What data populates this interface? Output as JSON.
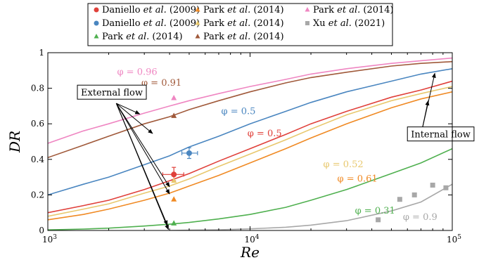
{
  "chart_data": {
    "type": "line",
    "xlabel": "Re",
    "ylabel": "DR",
    "xscale": "log",
    "xlim": [
      1000,
      100000
    ],
    "ylim": [
      0,
      1
    ],
    "x_ticks": [
      {
        "value": 1000,
        "label": "10",
        "exp": "3"
      },
      {
        "value": 10000,
        "label": "10",
        "exp": "4"
      },
      {
        "value": 100000,
        "label": "10",
        "exp": "5"
      }
    ],
    "y_ticks": [
      {
        "value": 0,
        "label": "0"
      },
      {
        "value": 0.2,
        "label": "0.2"
      },
      {
        "value": 0.4,
        "label": "0.4"
      },
      {
        "value": 0.6,
        "label": "0.6"
      },
      {
        "value": 0.8,
        "label": "0.8"
      },
      {
        "value": 1,
        "label": "1"
      }
    ],
    "grid": false,
    "legend_position": "top",
    "legend": [
      {
        "marker": "circle",
        "color": "#e0403a",
        "pre": "Daniello ",
        "italic": "et al.",
        "post": " (2009)"
      },
      {
        "marker": "triangle",
        "color": "#f08a24",
        "pre": "Park ",
        "italic": "et al.",
        "post": " (2014)"
      },
      {
        "marker": "triangle",
        "color": "#ef86c2",
        "pre": "Park ",
        "italic": "et al.",
        "post": " (2014)"
      },
      {
        "marker": "circle",
        "color": "#4a86c0",
        "pre": "Daniello ",
        "italic": "et al.",
        "post": " (2009)"
      },
      {
        "marker": "triangle",
        "color": "#e8c86e",
        "pre": "Park ",
        "italic": "et al.",
        "post": " (2014)"
      },
      {
        "marker": "square",
        "color": "#a8a8a8",
        "pre": "Xu ",
        "italic": "et al.",
        "post": " (2021)"
      },
      {
        "marker": "triangle",
        "color": "#4fb04f",
        "pre": "Park ",
        "italic": "et al.",
        "post": " (2014)"
      },
      {
        "marker": "triangle",
        "color": "#a0593a",
        "pre": "Park ",
        "italic": "et al.",
        "post": " (2014)"
      }
    ],
    "series": [
      {
        "color": "#ef86c2",
        "label": "φ = 0.96",
        "x": [
          1000,
          1500,
          2000,
          3000,
          4000,
          5000,
          7000,
          10000,
          15000,
          20000,
          30000,
          50000,
          70000,
          100000
        ],
        "y": [
          0.49,
          0.56,
          0.6,
          0.66,
          0.7,
          0.73,
          0.77,
          0.81,
          0.85,
          0.88,
          0.91,
          0.94,
          0.955,
          0.97
        ]
      },
      {
        "color": "#a0593a",
        "label": "φ = 0.91",
        "x": [
          1000,
          1500,
          2000,
          3000,
          4000,
          5000,
          7000,
          10000,
          15000,
          20000,
          30000,
          50000,
          70000,
          100000
        ],
        "y": [
          0.41,
          0.48,
          0.53,
          0.6,
          0.64,
          0.68,
          0.73,
          0.78,
          0.83,
          0.86,
          0.89,
          0.925,
          0.94,
          0.95
        ]
      },
      {
        "color": "#4a86c0",
        "label": "φ = 0.5",
        "x": [
          1000,
          1500,
          2000,
          3000,
          4000,
          5000,
          7000,
          10000,
          15000,
          20000,
          30000,
          50000,
          70000,
          100000
        ],
        "y": [
          0.2,
          0.26,
          0.3,
          0.37,
          0.42,
          0.47,
          0.53,
          0.6,
          0.67,
          0.72,
          0.78,
          0.84,
          0.88,
          0.91
        ]
      },
      {
        "color": "#e0403a",
        "label": "φ = 0.5",
        "x": [
          1000,
          1500,
          2000,
          3000,
          4000,
          5000,
          7000,
          10000,
          15000,
          20000,
          30000,
          50000,
          70000,
          100000
        ],
        "y": [
          0.1,
          0.14,
          0.17,
          0.23,
          0.28,
          0.32,
          0.39,
          0.46,
          0.54,
          0.6,
          0.67,
          0.75,
          0.79,
          0.84
        ]
      },
      {
        "color": "#e8c86e",
        "label": "φ = 0.52",
        "x": [
          1000,
          1500,
          2000,
          3000,
          4000,
          5000,
          7000,
          10000,
          15000,
          20000,
          30000,
          50000,
          70000,
          100000
        ],
        "y": [
          0.08,
          0.12,
          0.15,
          0.21,
          0.25,
          0.29,
          0.36,
          0.43,
          0.51,
          0.57,
          0.65,
          0.73,
          0.77,
          0.81
        ]
      },
      {
        "color": "#f08a24",
        "label": "φ = 0.61",
        "x": [
          1000,
          1500,
          2000,
          3000,
          4000,
          5000,
          7000,
          10000,
          15000,
          20000,
          30000,
          50000,
          70000,
          100000
        ],
        "y": [
          0.06,
          0.09,
          0.12,
          0.17,
          0.21,
          0.25,
          0.31,
          0.38,
          0.46,
          0.52,
          0.6,
          0.69,
          0.74,
          0.78
        ]
      },
      {
        "color": "#4fb04f",
        "label": "φ = 0.31",
        "x": [
          1000,
          1500,
          2000,
          3000,
          4000,
          5000,
          7000,
          10000,
          15000,
          20000,
          30000,
          50000,
          70000,
          100000
        ],
        "y": [
          0.003,
          0.008,
          0.013,
          0.025,
          0.035,
          0.045,
          0.065,
          0.09,
          0.13,
          0.17,
          0.23,
          0.32,
          0.38,
          0.46
        ]
      },
      {
        "color": "#a8a8a8",
        "label": "φ = 0.9",
        "x": [
          4000,
          5000,
          7000,
          10000,
          15000,
          20000,
          30000,
          50000,
          70000,
          100000
        ],
        "y": [
          0,
          0.002,
          0.004,
          0.009,
          0.018,
          0.03,
          0.055,
          0.11,
          0.16,
          0.26
        ]
      }
    ],
    "points": [
      {
        "shape": "circle",
        "color": "#e0403a",
        "x": 4200,
        "y": 0.315,
        "xerr": [
          3700,
          4700
        ],
        "yerr": [
          0.28,
          0.355
        ]
      },
      {
        "shape": "circle",
        "color": "#4a86c0",
        "x": 5000,
        "y": 0.435,
        "xerr": [
          4600,
          5500
        ],
        "yerr": [
          0.405,
          0.465
        ]
      },
      {
        "shape": "triangle",
        "color": "#ef86c2",
        "x": 4200,
        "y": 0.745
      },
      {
        "shape": "triangle",
        "color": "#a0593a",
        "x": 4200,
        "y": 0.645
      },
      {
        "shape": "triangle",
        "color": "#e8c86e",
        "x": 4200,
        "y": 0.28
      },
      {
        "shape": "triangle",
        "color": "#f08a24",
        "x": 4200,
        "y": 0.175
      },
      {
        "shape": "triangle",
        "color": "#4fb04f",
        "x": 4200,
        "y": 0.04
      },
      {
        "shape": "square",
        "color": "#a8a8a8",
        "x": 43000,
        "y": 0.06
      },
      {
        "shape": "square",
        "color": "#a8a8a8",
        "x": 55000,
        "y": 0.175
      },
      {
        "shape": "square",
        "color": "#a8a8a8",
        "x": 65000,
        "y": 0.2
      },
      {
        "shape": "square",
        "color": "#a8a8a8",
        "x": 80000,
        "y": 0.255
      },
      {
        "shape": "square",
        "color": "#a8a8a8",
        "x": 93000,
        "y": 0.24
      }
    ],
    "curve_labels": [
      {
        "text": "φ = 0.96",
        "color": "#ef86c2",
        "x": 2200,
        "y": 0.875
      },
      {
        "text": "φ = 0.91",
        "color": "#a0593a",
        "x": 2900,
        "y": 0.815
      },
      {
        "text": "φ = 0.5",
        "color": "#4a86c0",
        "x": 7200,
        "y": 0.655
      },
      {
        "text": "φ = 0.5",
        "color": "#e0403a",
        "x": 9700,
        "y": 0.53
      },
      {
        "text": "φ = 0.52",
        "color": "#e8c86e",
        "x": 23000,
        "y": 0.355
      },
      {
        "text": "φ = 0.61",
        "color": "#f08a24",
        "x": 27000,
        "y": 0.275
      },
      {
        "text": "φ = 0.31",
        "color": "#4fb04f",
        "x": 33000,
        "y": 0.095
      },
      {
        "text": "φ = 0.9",
        "color": "#a8a8a8",
        "x": 57000,
        "y": 0.06
      }
    ],
    "annotations": [
      {
        "text": "External flow",
        "box": [
          1400,
          0.77
        ],
        "arrow_from": [
          2180,
          0.715
        ],
        "targets": [
          [
            2850,
            0.655
          ],
          [
            3300,
            0.545
          ],
          [
            4000,
            0.245
          ],
          [
            4000,
            0.205
          ],
          [
            3900,
            0.03
          ],
          [
            3950,
            0.005
          ]
        ]
      },
      {
        "text": "Internal flow",
        "box": [
          60000,
          0.535
        ],
        "arrow_from": [
          71000,
          0.57
        ],
        "targets": [
          [
            82000,
            0.885
          ],
          [
            76000,
            0.73
          ]
        ]
      }
    ]
  }
}
